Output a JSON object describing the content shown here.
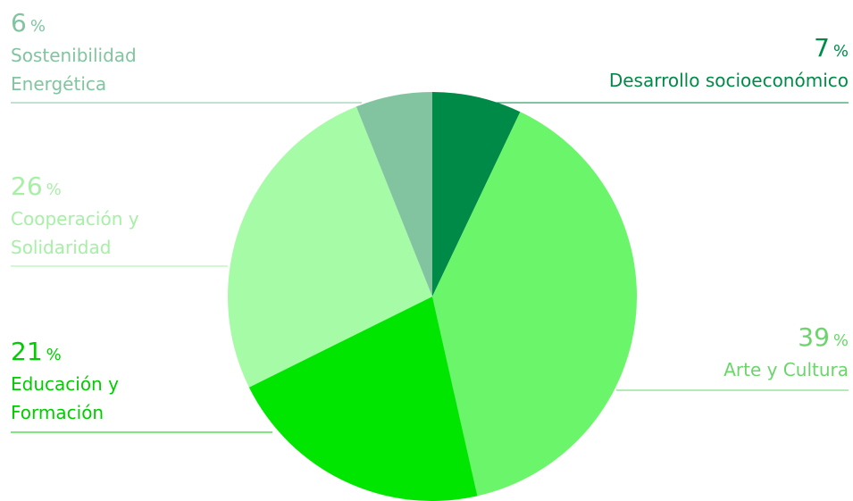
{
  "chart_data": {
    "type": "pie",
    "categories": [
      "Desarrollo socioeconómico",
      "Arte y Cultura",
      "Educación y Formación",
      "Cooperación y Solidaridad",
      "Sostenibilidad Energética"
    ],
    "values": [
      7,
      39,
      21,
      26,
      6
    ],
    "unit": "%",
    "colors": [
      "#008a48",
      "#6af56a",
      "#00e600",
      "#a6fca6",
      "#82c4a0"
    ],
    "label_colors": [
      "#008a48",
      "#6ad66a",
      "#00cc00",
      "#a6f0a6",
      "#82c4a0"
    ]
  }
}
